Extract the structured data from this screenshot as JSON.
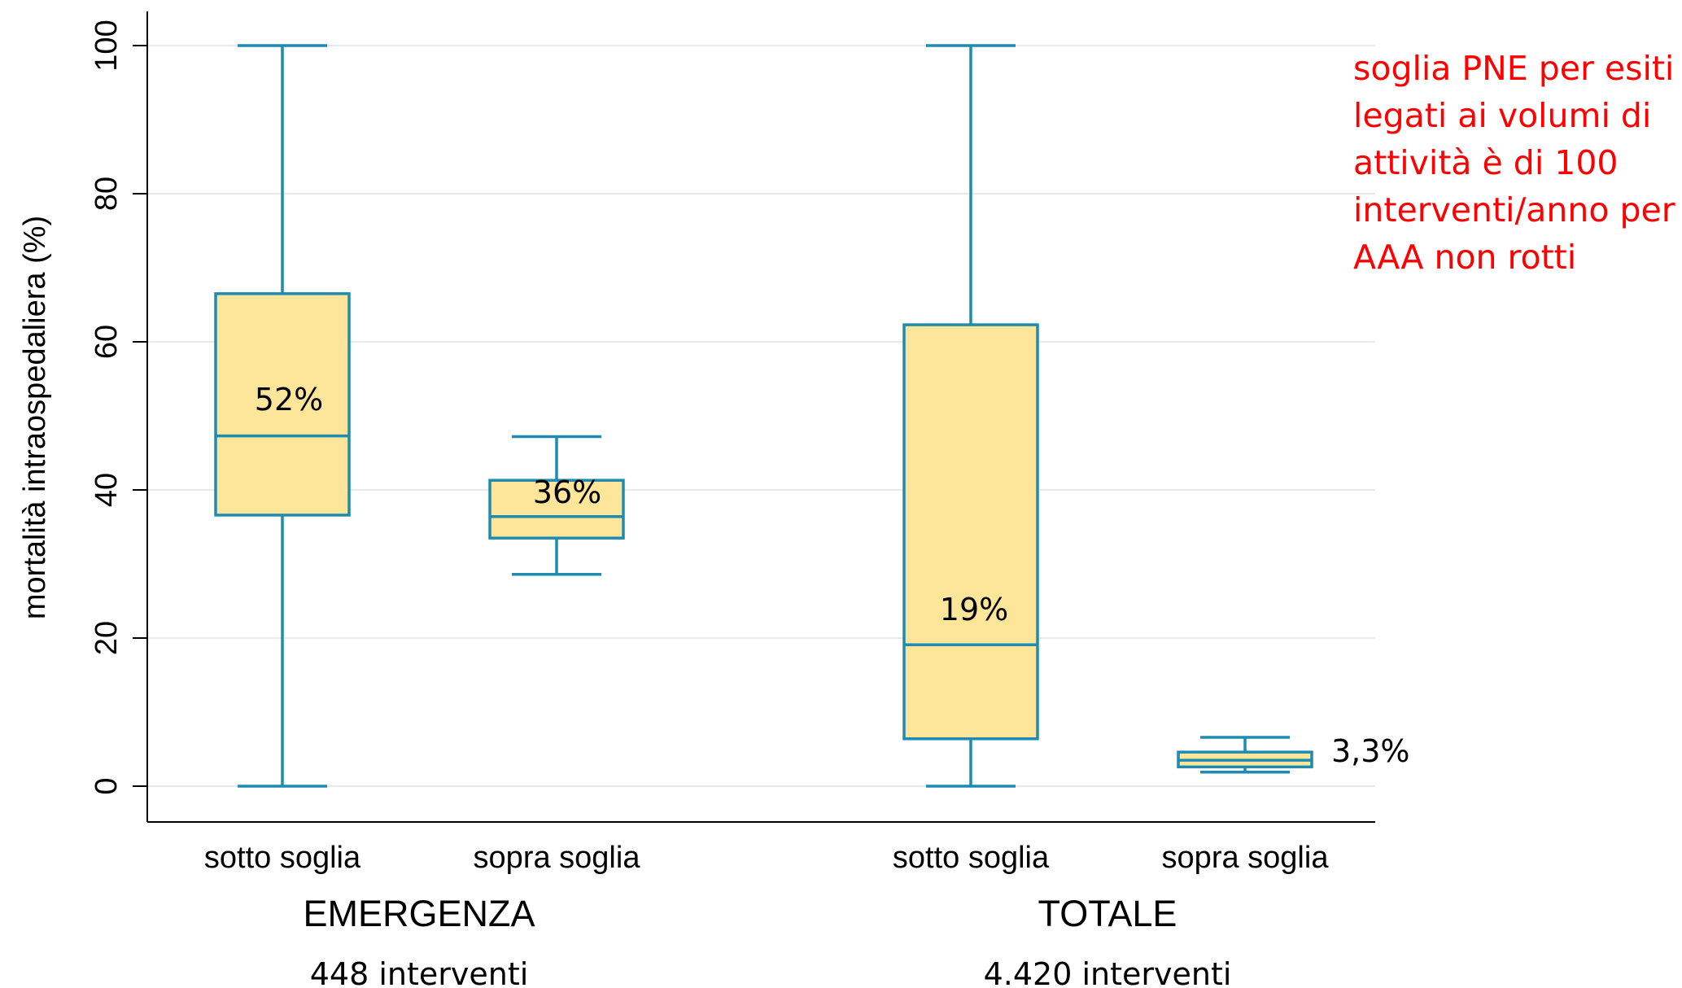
{
  "chart_data": {
    "type": "box",
    "ylabel": "mortalità intraospedaliera (%)",
    "ylim": [
      -5,
      105
    ],
    "yticks": [
      0,
      20,
      40,
      60,
      80,
      100
    ],
    "grid": true,
    "groups": [
      {
        "name": "EMERGENZA",
        "subtitle": "448 interventi",
        "boxes": [
          {
            "category": "sotto soglia",
            "min": 0,
            "q1": 36.6,
            "median": 47.3,
            "q3": 66.5,
            "max": 100,
            "label": "52%"
          },
          {
            "category": "sopra soglia",
            "min": 28.6,
            "q1": 33.5,
            "median": 36.4,
            "q3": 41.3,
            "max": 47.2,
            "label": "36%"
          }
        ]
      },
      {
        "name": "TOTALE",
        "subtitle": "4.420 interventi",
        "boxes": [
          {
            "category": "sotto soglia",
            "min": 0,
            "q1": 6.4,
            "median": 19.1,
            "q3": 62.3,
            "max": 100,
            "label": "19%"
          },
          {
            "category": "sopra soglia",
            "min": 1.9,
            "q1": 2.6,
            "median": 3.5,
            "q3": 4.6,
            "max": 6.6,
            "label": "3,3%"
          }
        ]
      }
    ],
    "annotation": {
      "lines": [
        "soglia PNE per esiti",
        "legati ai volumi di",
        "attività è di 100",
        "interventi/anno per",
        "AAA non rotti"
      ]
    },
    "colors": {
      "box_fill": "#fde69a",
      "box_stroke": "#1f8bb0",
      "grid": "#e6eaed",
      "annotation": "#ff0000"
    }
  }
}
